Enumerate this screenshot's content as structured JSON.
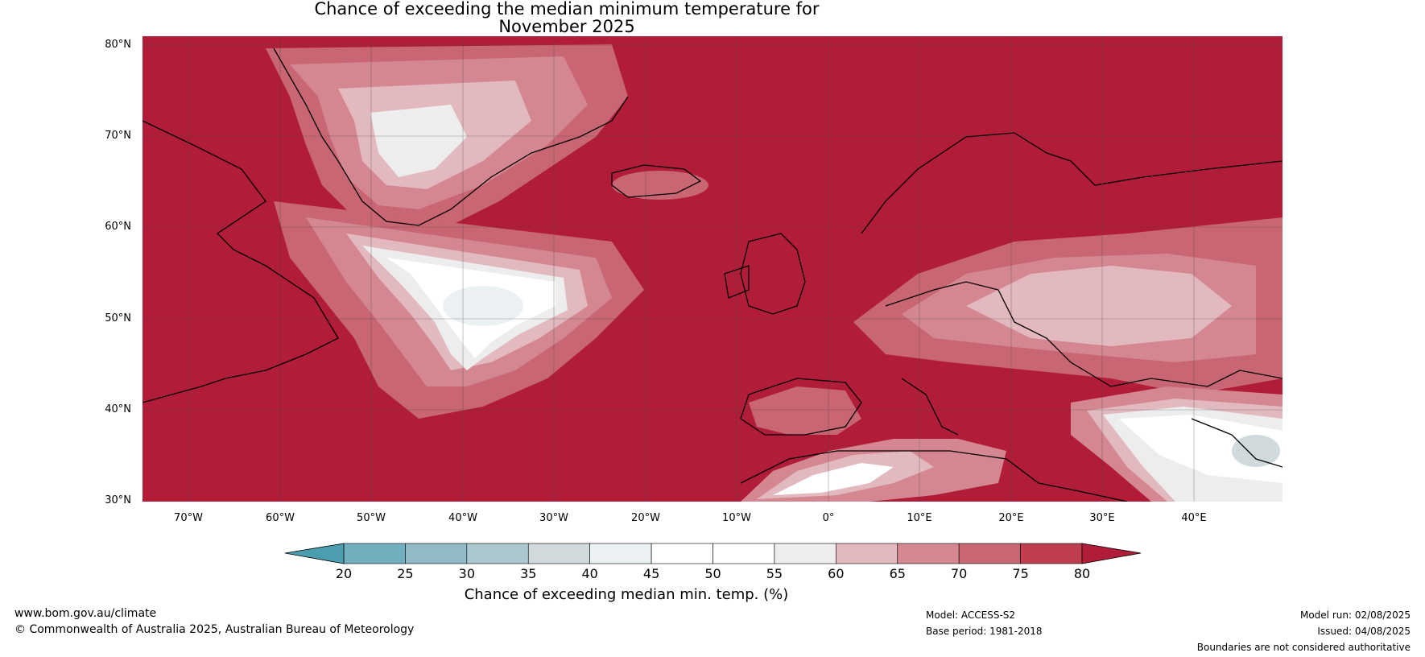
{
  "title": {
    "line1": "Chance of exceeding the median minimum temperature for",
    "line2": "November 2025"
  },
  "map": {
    "region": "North Atlantic and Europe",
    "lat_labels": [
      "80°N",
      "70°N",
      "60°N",
      "50°N",
      "40°N",
      "30°N"
    ],
    "lon_labels": [
      "70°W",
      "60°W",
      "50°W",
      "40°W",
      "30°W",
      "20°W",
      "10°W",
      "0°",
      "10°E",
      "20°E",
      "30°E",
      "40°E"
    ],
    "background_color": "#b11c38",
    "features": [
      {
        "name": "Greenland interior",
        "category": "60-70"
      },
      {
        "name": "North Atlantic near-neutral region",
        "category": "45-55"
      },
      {
        "name": "Central and eastern Europe",
        "category": "60-70"
      },
      {
        "name": "Turkey and Middle East",
        "category": "40-55"
      },
      {
        "name": "North Africa (Morocco/Algeria)",
        "category": "45-55"
      }
    ]
  },
  "colorbar": {
    "ticks": [
      "20",
      "25",
      "30",
      "35",
      "40",
      "45",
      "50",
      "55",
      "60",
      "65",
      "70",
      "75",
      "80"
    ],
    "colors": [
      "#4b9eb0",
      "#71afbf",
      "#8fbac6",
      "#aac8ce",
      "#d0d9dc",
      "#ebf1f2",
      "#ffffff",
      "#ffffff",
      "#ededed",
      "#e2b9bf",
      "#d48791",
      "#c96673",
      "#bf3e50"
    ],
    "under_color": "#4b9eb0",
    "over_color": "#b11c38",
    "label": "Chance of exceeding median min. temp. (%)"
  },
  "footer": {
    "url": "www.bom.gov.au/climate",
    "copyright": "© Commonwealth of Australia 2025, Australian Bureau of Meteorology",
    "model": "Model: ACCESS-S2",
    "base_period": "Base period: 1981-2018",
    "model_run": "Model run: 02/08/2025",
    "issued": "Issued: 04/08/2025",
    "disclaimer": "Boundaries are not considered authoritative"
  }
}
